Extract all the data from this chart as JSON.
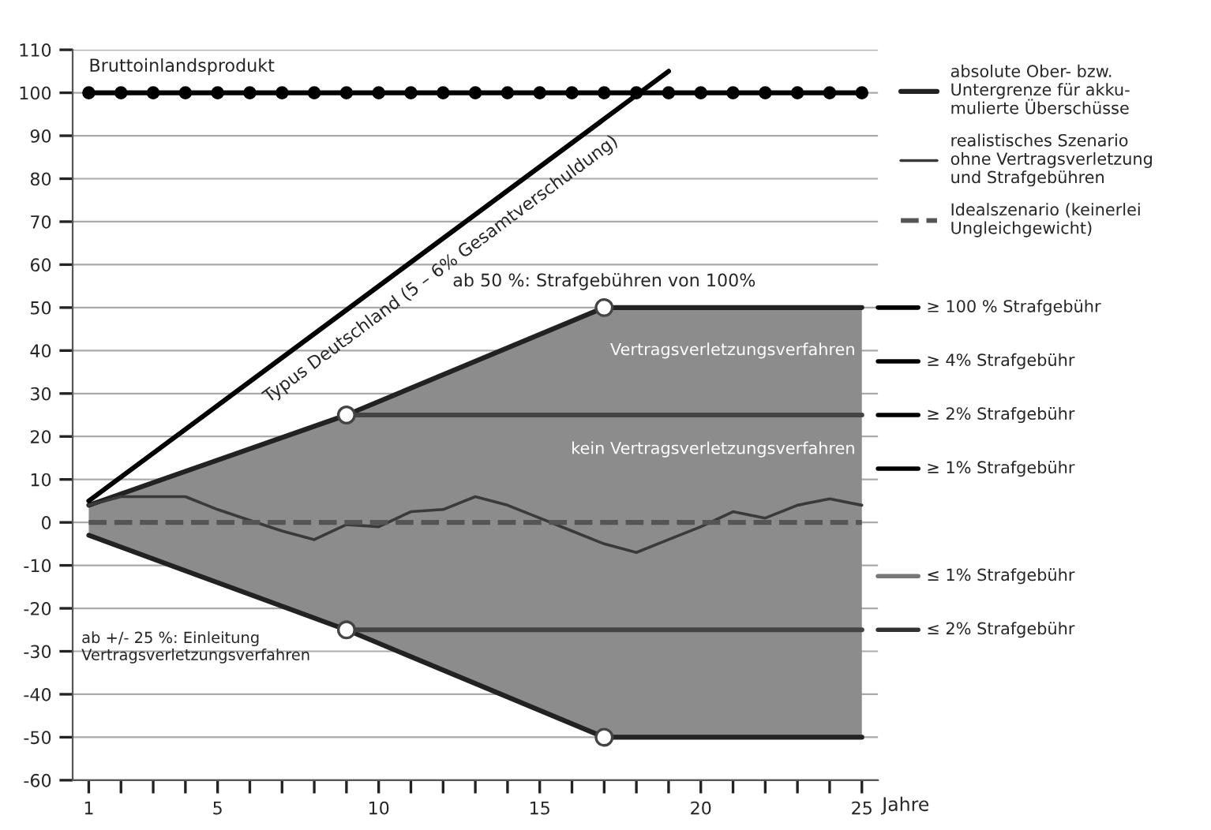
{
  "chart_data": {
    "type": "line",
    "xlabel": "Jahre",
    "xlim": [
      0.5,
      25.5
    ],
    "xticks": [
      1,
      {
        "value": 2,
        "label": null
      },
      {
        "value": 3,
        "label": null
      },
      {
        "value": 4,
        "label": null
      },
      5,
      {
        "value": 6,
        "label": null
      },
      {
        "value": 7,
        "label": null
      },
      {
        "value": 8,
        "label": null
      },
      {
        "value": 9,
        "label": null
      },
      10,
      {
        "value": 11,
        "label": null
      },
      {
        "value": 12,
        "label": null
      },
      {
        "value": 13,
        "label": null
      },
      {
        "value": 14,
        "label": null
      },
      15,
      {
        "value": 16,
        "label": null
      },
      {
        "value": 17,
        "label": null
      },
      {
        "value": 18,
        "label": null
      },
      {
        "value": 19,
        "label": null
      },
      20,
      {
        "value": 21,
        "label": null
      },
      {
        "value": 22,
        "label": null
      },
      {
        "value": 23,
        "label": null
      },
      {
        "value": 24,
        "label": null
      },
      25
    ],
    "ylim": [
      -60,
      110
    ],
    "yticks": [
      -60,
      -50,
      -40,
      -30,
      -20,
      -10,
      0,
      10,
      20,
      30,
      40,
      50,
      60,
      70,
      80,
      90,
      100,
      110
    ],
    "grid": "y",
    "legend": "right",
    "series": [
      {
        "name": "absolute Ober- bzw.\nUntergrenze für akku-\nmulierte Überschüsse",
        "type": "line",
        "color": "#222222",
        "x": [
          1,
          9,
          17,
          25
        ],
        "values": [
          4,
          25,
          50,
          50
        ]
      },
      {
        "type": "line",
        "color": "#222222",
        "x": [
          1,
          9,
          17,
          25
        ],
        "values": [
          -3,
          -25,
          -50,
          -50
        ]
      },
      {
        "color": "#444444",
        "x": [
          9,
          25
        ],
        "values": [
          25,
          25
        ]
      },
      {
        "color": "#444444",
        "x": [
          9,
          25
        ],
        "values": [
          -25,
          -25
        ]
      },
      {
        "marker": "circle",
        "color": "#000000",
        "x": [
          1,
          2,
          3,
          4,
          5,
          6,
          7,
          8,
          9,
          10,
          11,
          12,
          13,
          14,
          15,
          16,
          17,
          18,
          19,
          20,
          21,
          22,
          23,
          24,
          25
        ],
        "values": [
          100,
          100,
          100,
          100,
          100,
          100,
          100,
          100,
          100,
          100,
          100,
          100,
          100,
          100,
          100,
          100,
          100,
          100,
          100,
          100,
          100,
          100,
          100,
          100,
          100
        ]
      },
      {
        "color": "#000000",
        "x": [
          1,
          19
        ],
        "values": [
          5,
          105
        ]
      },
      {
        "name": "realistisches Szenario\nohne Vertragsverletzung\nund Strafgebühren",
        "type": "line",
        "color": "#3a3a3a",
        "x": [
          1,
          2,
          3,
          4,
          5,
          6,
          7,
          8,
          9,
          10,
          11,
          12,
          13,
          14,
          15,
          16,
          17,
          18,
          19,
          20,
          21,
          22,
          23,
          24,
          25
        ],
        "values": [
          4,
          6,
          6,
          6,
          3,
          0.5,
          -2,
          -4,
          -0.5,
          -1,
          2.5,
          3,
          6,
          4,
          1,
          -2,
          -5,
          -7,
          -4,
          -1,
          2.5,
          1,
          4,
          5.5,
          4
        ],
        "upper": [
          4,
          6.625,
          9.25,
          11.875,
          14.5,
          17.125,
          19.75,
          22.375,
          25,
          28.125,
          31.25,
          34.375,
          37.5,
          40.625,
          43.75,
          46.875,
          50,
          50,
          50,
          50,
          50,
          50,
          50,
          50,
          50
        ],
        "lower": [
          -3,
          -5.75,
          -8.5,
          -11.25,
          -14,
          -16.75,
          -19.5,
          -22.25,
          -25,
          -28.125,
          -31.25,
          -34.375,
          -37.5,
          -40.625,
          -43.75,
          -46.875,
          -50,
          -50,
          -50,
          -50,
          -50,
          -50,
          -50,
          -50,
          -50
        ]
      },
      {
        "name": "Idealszenario (keinerlei\nUngleichgewicht)",
        "line_style": "dashed",
        "color": "#555555",
        "x": [
          1,
          25
        ],
        "values": [
          0,
          0
        ]
      },
      {
        "type": "scatter",
        "marker": "circle",
        "color": "#ffffff",
        "x": [
          9,
          17,
          9,
          17
        ],
        "values": [
          25,
          50,
          -25,
          -50
        ]
      }
    ],
    "ref_lines": [
      {
        "axis": "y",
        "value": 50,
        "label": "≥ 100 % Strafgebühr",
        "color": "#000000"
      },
      {
        "axis": "y",
        "value": 37.5,
        "label": "≥ 4% Strafgebühr",
        "color": "#000000"
      },
      {
        "axis": "y",
        "value": 25,
        "label": "≥ 2% Strafgebühr",
        "color": "#000000"
      },
      {
        "axis": "y",
        "value": 12.5,
        "label": "≥ 1% Strafgebühr",
        "color": "#000000"
      },
      {
        "axis": "y",
        "value": -12.5,
        "label": "≤ 1% Strafgebühr",
        "color": "#777777"
      },
      {
        "axis": "y",
        "value": -25,
        "label": "≤ 2% Strafgebühr",
        "color": "#333333"
      }
    ],
    "annotations": [
      {
        "text": "Bruttoinlandsprodukt",
        "x": 1,
        "y": 100
      },
      {
        "text": "Typus Deutschland (5 – 6% Gesamtverschuldung)",
        "x": 6,
        "y": 32.8
      },
      {
        "text": "ab 50 %: Strafgebühren von 100%",
        "x": 17,
        "y": 50
      },
      {
        "text": "ab +/- 25 %: Einleitung\nVertragsverletzungsverfahren",
        "x": 9,
        "y": -25
      },
      {
        "text": "Vertragsverletzungsverfahren",
        "x": 25,
        "y": 40
      },
      {
        "text": "kein Vertragsverletzungsverfahren",
        "x": 25,
        "y": 17
      }
    ]
  }
}
